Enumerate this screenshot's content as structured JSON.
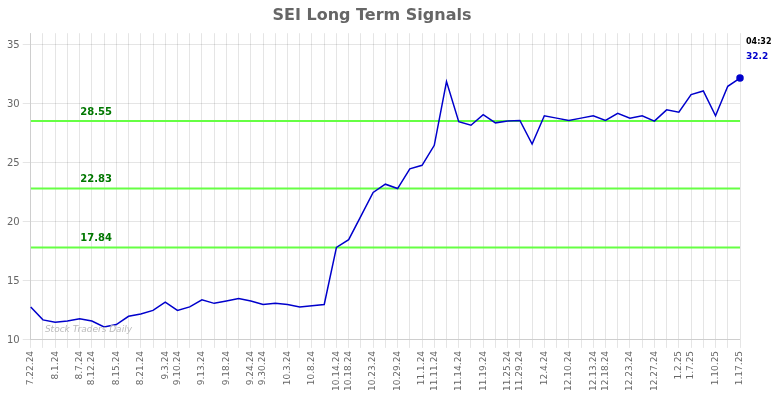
{
  "chart_data": {
    "type": "line",
    "title": "SEI Long Term Signals",
    "categories": [
      "7.22.24",
      null,
      "8.1.24",
      null,
      "8.7.24",
      "8.12.24",
      null,
      "8.15.24",
      null,
      "8.21.24",
      null,
      "9.3.24",
      "9.10.24",
      null,
      "9.13.24",
      null,
      "9.18.24",
      null,
      "9.24.24",
      "9.30.24",
      null,
      "10.3.24",
      null,
      "10.8.24",
      null,
      "10.14.24",
      "10.18.24",
      null,
      "10.23.24",
      null,
      "10.29.24",
      null,
      "11.1.24",
      "11.11.24",
      null,
      "11.14.24",
      null,
      "11.19.24",
      null,
      "11.25.24",
      "11.29.24",
      null,
      "12.4.24",
      null,
      "12.10.24",
      null,
      "12.13.24",
      "12.18.24",
      null,
      "12.23.24",
      null,
      "12.27.24",
      null,
      "1.2.25",
      "1.7.25",
      null,
      "1.10.25",
      null,
      "1.17.25"
    ],
    "values": [
      12.8,
      11.7,
      11.5,
      11.6,
      11.8,
      11.6,
      11.1,
      11.3,
      12.0,
      12.2,
      12.5,
      13.2,
      12.5,
      12.8,
      13.4,
      13.1,
      13.3,
      13.5,
      13.3,
      13.0,
      13.1,
      13.0,
      12.8,
      12.9,
      13.0,
      17.84,
      18.5,
      20.5,
      22.5,
      23.2,
      22.83,
      24.5,
      24.8,
      26.5,
      31.9,
      28.5,
      28.2,
      29.1,
      28.4,
      28.55,
      28.6,
      26.6,
      29.0,
      28.8,
      28.6,
      28.8,
      29.0,
      28.6,
      29.2,
      28.8,
      29.0,
      28.55,
      29.5,
      29.3,
      30.8,
      31.1,
      29.0,
      31.5,
      32.2
    ],
    "color": "#0000cc",
    "ylim": [
      10,
      36
    ],
    "yticks": [
      10,
      15,
      20,
      25,
      30,
      35
    ],
    "grid": true,
    "hlines": [
      17.84,
      22.83,
      28.55
    ],
    "hline_color": "#66ff44",
    "hline_label_color": "#007700",
    "annotations": [
      {
        "text": "04:32",
        "color": "#000000"
      },
      {
        "text": "32.2",
        "color": "#0000cc"
      }
    ],
    "watermark": {
      "text": "Stock Traders Daily",
      "color": "#bbbbbb"
    }
  }
}
